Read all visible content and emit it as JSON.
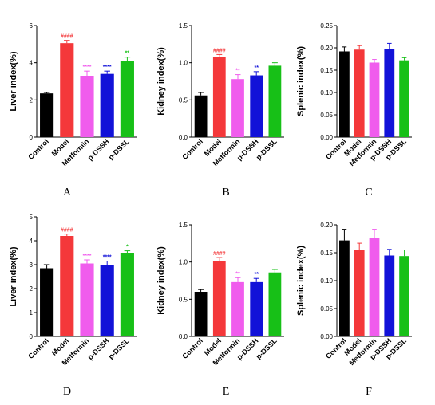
{
  "colors": {
    "Control": "#000000",
    "Model": "#f4383a",
    "Metformin": "#f05ced",
    "p-DSSH": "#1212d8",
    "p-DSSL": "#17c017",
    "axis": "#000000"
  },
  "chart_data": [
    {
      "type": "bar",
      "panel_label": "A",
      "ylabel": "Liver index(%)",
      "ylim": [
        0,
        6
      ],
      "yticks": [
        "0",
        "2",
        "4",
        "6"
      ],
      "categories": [
        "Control",
        "Model",
        "Metformin",
        "p-DSSH",
        "p-DSSL"
      ],
      "values": [
        2.35,
        5.05,
        3.3,
        3.4,
        4.1
      ],
      "errors": [
        0.05,
        0.15,
        0.25,
        0.15,
        0.2
      ],
      "significance": [
        "",
        "####",
        "****",
        "****",
        "**"
      ]
    },
    {
      "type": "bar",
      "panel_label": "B",
      "ylabel": "Kidney index(%)",
      "ylim": [
        0,
        1.5
      ],
      "yticks": [
        "0.0",
        "0.5",
        "1.0",
        "1.5"
      ],
      "categories": [
        "Control",
        "Model",
        "Metformin",
        "p-DSSH",
        "p-DSSL"
      ],
      "values": [
        0.56,
        1.08,
        0.78,
        0.83,
        0.96
      ],
      "errors": [
        0.04,
        0.03,
        0.06,
        0.05,
        0.04
      ],
      "significance": [
        "",
        "####",
        "**",
        "**",
        ""
      ]
    },
    {
      "type": "bar",
      "panel_label": "C",
      "ylabel": "Splenic index(%)",
      "ylim": [
        0,
        0.25
      ],
      "yticks": [
        "0.00",
        "0.05",
        "0.10",
        "0.15",
        "0.20",
        "0.25"
      ],
      "categories": [
        "Control",
        "Model",
        "Metformin",
        "p-DSSH",
        "p-DSSL"
      ],
      "values": [
        0.192,
        0.196,
        0.167,
        0.198,
        0.172
      ],
      "errors": [
        0.01,
        0.009,
        0.007,
        0.012,
        0.006
      ],
      "significance": [
        "",
        "",
        "",
        "",
        ""
      ]
    },
    {
      "type": "bar",
      "panel_label": "D",
      "ylabel": "Liver index(%)",
      "ylim": [
        0,
        5
      ],
      "yticks": [
        "0",
        "1",
        "2",
        "3",
        "4",
        "5"
      ],
      "categories": [
        "Control",
        "Model",
        "Metformin",
        "p-DSSH",
        "p-DSSL"
      ],
      "values": [
        2.85,
        4.2,
        3.05,
        3.0,
        3.5
      ],
      "errors": [
        0.15,
        0.08,
        0.15,
        0.15,
        0.08
      ],
      "significance": [
        "",
        "####",
        "****",
        "****",
        "*"
      ]
    },
    {
      "type": "bar",
      "panel_label": "E",
      "ylabel": "Kidney index(%)",
      "ylim": [
        0,
        1.5
      ],
      "yticks": [
        "0.0",
        "0.5",
        "1.0",
        "1.5"
      ],
      "categories": [
        "Control",
        "Model",
        "Metformin",
        "p-DSSH",
        "p-DSSL"
      ],
      "values": [
        0.6,
        1.01,
        0.73,
        0.73,
        0.86
      ],
      "errors": [
        0.03,
        0.05,
        0.06,
        0.05,
        0.04
      ],
      "significance": [
        "",
        "####",
        "**",
        "**",
        ""
      ]
    },
    {
      "type": "bar",
      "panel_label": "F",
      "ylabel": "Splenic index(%)",
      "ylim": [
        0,
        0.2
      ],
      "yticks": [
        "0.00",
        "0.05",
        "0.10",
        "0.15",
        "0.20"
      ],
      "categories": [
        "Control",
        "Model",
        "Metformin",
        "p-DSSH",
        "p-DSSL"
      ],
      "values": [
        0.172,
        0.155,
        0.176,
        0.145,
        0.144
      ],
      "errors": [
        0.02,
        0.012,
        0.016,
        0.011,
        0.011
      ],
      "significance": [
        "",
        "",
        "",
        "",
        ""
      ]
    }
  ]
}
